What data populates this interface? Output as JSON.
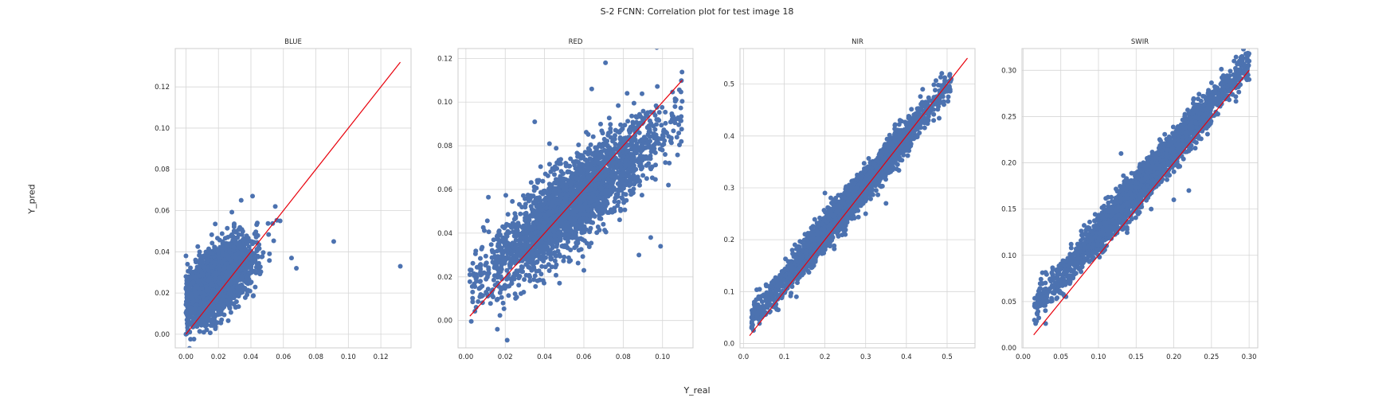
{
  "figure": {
    "title": "S-2 FCNN: Correlation plot for test image 18",
    "xlabel": "Y_real",
    "ylabel": "Y_pred"
  },
  "colors": {
    "points": "#4c72b0",
    "line": "#e8000b",
    "grid": "#d6d6d6",
    "frame": "#cccccc"
  },
  "chart_data": [
    {
      "type": "scatter",
      "title": "BLUE",
      "xlim": [
        -0.0066,
        0.1386
      ],
      "ylim": [
        -0.0066,
        0.1386
      ],
      "xticks": [
        0.0,
        0.02,
        0.04,
        0.06,
        0.08,
        0.1,
        0.12
      ],
      "yticks": [
        0.0,
        0.02,
        0.04,
        0.06,
        0.08,
        0.1,
        0.12
      ],
      "tick_labels_x": [
        "0.00",
        "0.02",
        "0.04",
        "0.06",
        "0.08",
        "0.10",
        "0.12"
      ],
      "tick_labels_y": [
        "0.00",
        "0.02",
        "0.04",
        "0.06",
        "0.08",
        "0.10",
        "0.12"
      ],
      "identity_line": [
        0.0,
        0.132
      ],
      "cloud": {
        "x_range": [
          0.0,
          0.057
        ],
        "center": [
          0.02,
          0.026
        ],
        "spread": 0.0095,
        "slope": 0.55,
        "noise": 0.0075
      },
      "points": [
        [
          0.0,
          0.0
        ],
        [
          0.0,
          0.028
        ],
        [
          0.0,
          0.038
        ],
        [
          0.005,
          0.004
        ],
        [
          0.011,
          0.001
        ],
        [
          0.034,
          0.065
        ],
        [
          0.041,
          0.067
        ],
        [
          0.055,
          0.062
        ],
        [
          0.058,
          0.055
        ],
        [
          0.065,
          0.037
        ],
        [
          0.068,
          0.032
        ],
        [
          0.091,
          0.045
        ],
        [
          0.132,
          0.033
        ]
      ],
      "grid": true
    },
    {
      "type": "scatter",
      "title": "RED",
      "xlim": [
        -0.004,
        0.1155
      ],
      "ylim": [
        -0.0125,
        0.1245
      ],
      "xticks": [
        0.0,
        0.02,
        0.04,
        0.06,
        0.08,
        0.1
      ],
      "yticks": [
        0.0,
        0.02,
        0.04,
        0.06,
        0.08,
        0.1,
        0.12
      ],
      "tick_labels_x": [
        "0.00",
        "0.02",
        "0.04",
        "0.06",
        "0.08",
        "0.10"
      ],
      "tick_labels_y": [
        "0.00",
        "0.02",
        "0.04",
        "0.06",
        "0.08",
        "0.10",
        "0.12"
      ],
      "identity_line": [
        0.002,
        0.11
      ],
      "cloud": {
        "x_range": [
          0.002,
          0.11
        ],
        "center": [
          0.055,
          0.054
        ],
        "spread": 0.022,
        "slope": 0.72,
        "noise": 0.0095
      },
      "points": [
        [
          0.002,
          0.021
        ],
        [
          0.016,
          -0.004
        ],
        [
          0.021,
          -0.009
        ],
        [
          0.035,
          0.091
        ],
        [
          0.071,
          0.118
        ],
        [
          0.064,
          0.106
        ],
        [
          0.082,
          0.104
        ],
        [
          0.09,
          0.092
        ],
        [
          0.097,
          0.092
        ],
        [
          0.099,
          0.034
        ],
        [
          0.094,
          0.038
        ],
        [
          0.103,
          0.062
        ],
        [
          0.088,
          0.03
        ],
        [
          0.06,
          0.023
        ]
      ],
      "grid": true
    },
    {
      "type": "scatter",
      "title": "NIR",
      "xlim": [
        -0.0085,
        0.5685
      ],
      "ylim": [
        -0.0085,
        0.5685
      ],
      "xticks": [
        0.0,
        0.1,
        0.2,
        0.3,
        0.4,
        0.5
      ],
      "yticks": [
        0.0,
        0.1,
        0.2,
        0.3,
        0.4,
        0.5
      ],
      "tick_labels_x": [
        "0.0",
        "0.1",
        "0.2",
        "0.3",
        "0.4",
        "0.5"
      ],
      "tick_labels_y": [
        "0.0",
        "0.1",
        "0.2",
        "0.3",
        "0.4",
        "0.5"
      ],
      "identity_line": [
        0.015,
        0.55
      ],
      "cloud": {
        "x_range": [
          0.02,
          0.51
        ],
        "center": [
          0.26,
          0.27
        ],
        "spread": 0.11,
        "slope": 0.93,
        "noise": 0.016
      },
      "points": [
        [
          0.02,
          0.03
        ],
        [
          0.44,
          0.49
        ],
        [
          0.51,
          0.51
        ],
        [
          0.48,
          0.47
        ],
        [
          0.3,
          0.25
        ],
        [
          0.35,
          0.27
        ],
        [
          0.25,
          0.21
        ],
        [
          0.13,
          0.09
        ],
        [
          0.16,
          0.19
        ],
        [
          0.2,
          0.29
        ]
      ],
      "grid": true
    },
    {
      "type": "scatter",
      "title": "SWIR",
      "xlim": [
        -0.0015,
        0.3115
      ],
      "ylim": [
        -0.0,
        0.3235
      ],
      "xticks": [
        0.0,
        0.05,
        0.1,
        0.15,
        0.2,
        0.25,
        0.3
      ],
      "yticks": [
        0.0,
        0.05,
        0.1,
        0.15,
        0.2,
        0.25,
        0.3
      ],
      "tick_labels_x": [
        "0.00",
        "0.05",
        "0.10",
        "0.15",
        "0.20",
        "0.25",
        "0.30"
      ],
      "tick_labels_y": [
        "0.00",
        "0.05",
        "0.10",
        "0.15",
        "0.20",
        "0.25",
        "0.30"
      ],
      "identity_line": [
        0.014,
        0.3
      ],
      "cloud": {
        "x_range": [
          0.015,
          0.3
        ],
        "center": [
          0.16,
          0.178
        ],
        "spread": 0.065,
        "slope": 0.93,
        "noise": 0.01
      },
      "points": [
        [
          0.015,
          0.03
        ],
        [
          0.3,
          0.31
        ],
        [
          0.28,
          0.31
        ],
        [
          0.3,
          0.29
        ],
        [
          0.2,
          0.16
        ],
        [
          0.22,
          0.17
        ],
        [
          0.17,
          0.15
        ],
        [
          0.13,
          0.21
        ]
      ],
      "grid": true
    }
  ]
}
